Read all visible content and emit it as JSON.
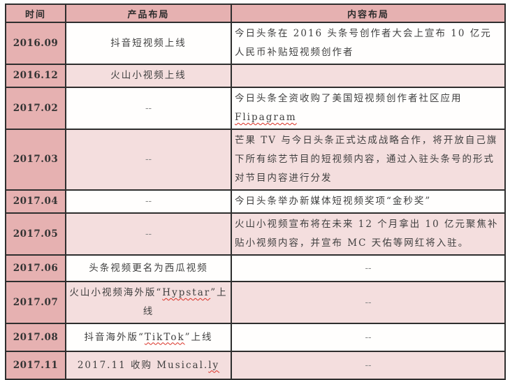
{
  "colors": {
    "header_pink": "#e6b1b1",
    "row_pink": "#f4dede",
    "row_white": "#fffefd",
    "border": "#2e2e2e",
    "text": "#3f3f3f",
    "wavy_red": "#d93025",
    "dash_gray": "#8a8a8a"
  },
  "table": {
    "columns": [
      {
        "label": "时间"
      },
      {
        "label": "产品布局"
      },
      {
        "label": "内容布局"
      }
    ],
    "empty_marker": "--",
    "rows": [
      {
        "time": "2016.09",
        "product": "抖音短视频上线",
        "content": "今日头条在 2016 头条号创作者大会上宣布 10 亿元人民币补贴短视频创作者"
      },
      {
        "time": "2016.12",
        "product": "火山小视频上线",
        "content": ""
      },
      {
        "time": "2017.02",
        "product": "--",
        "content": [
          {
            "t": "今日头条全资收购了美国短视频创作者社区应用 "
          },
          {
            "t": "Flipagram",
            "wavy": true
          }
        ]
      },
      {
        "time": "2017.03",
        "product": "--",
        "content": "芒果 TV 与今日头条正式达成战略合作，将开放自己旗下所有综艺节目的短视频内容，通过入驻头条号的形式对节目内容进行分发"
      },
      {
        "time": "2017.04",
        "product": "--",
        "content": "今日头条举办新媒体短视频奖项“金秒奖”"
      },
      {
        "time": "2017.05",
        "product": "--",
        "content": "火山小视频宣布将在未来 12 个月拿出 10 亿元聚焦补贴小视频内容，并宣布 MC 天佑等网红将入驻。"
      },
      {
        "time": "2017.06",
        "product": "头条视频更名为西瓜视频",
        "content": "--"
      },
      {
        "time": "2017.07",
        "product": [
          {
            "t": "火山小视频海外版“"
          },
          {
            "t": "Hypstar",
            "wavy": true
          },
          {
            "t": "”上线"
          }
        ],
        "content": "--"
      },
      {
        "time": "2017.08",
        "product": [
          {
            "t": "抖音海外版“"
          },
          {
            "t": "TikTok",
            "wavy": true
          },
          {
            "t": "”上线"
          }
        ],
        "content": "--"
      },
      {
        "time": "2017.11",
        "product": [
          {
            "t": "2017.11 收购 Musical."
          },
          {
            "t": "ly",
            "wavy": true
          }
        ],
        "content": "--"
      }
    ]
  }
}
